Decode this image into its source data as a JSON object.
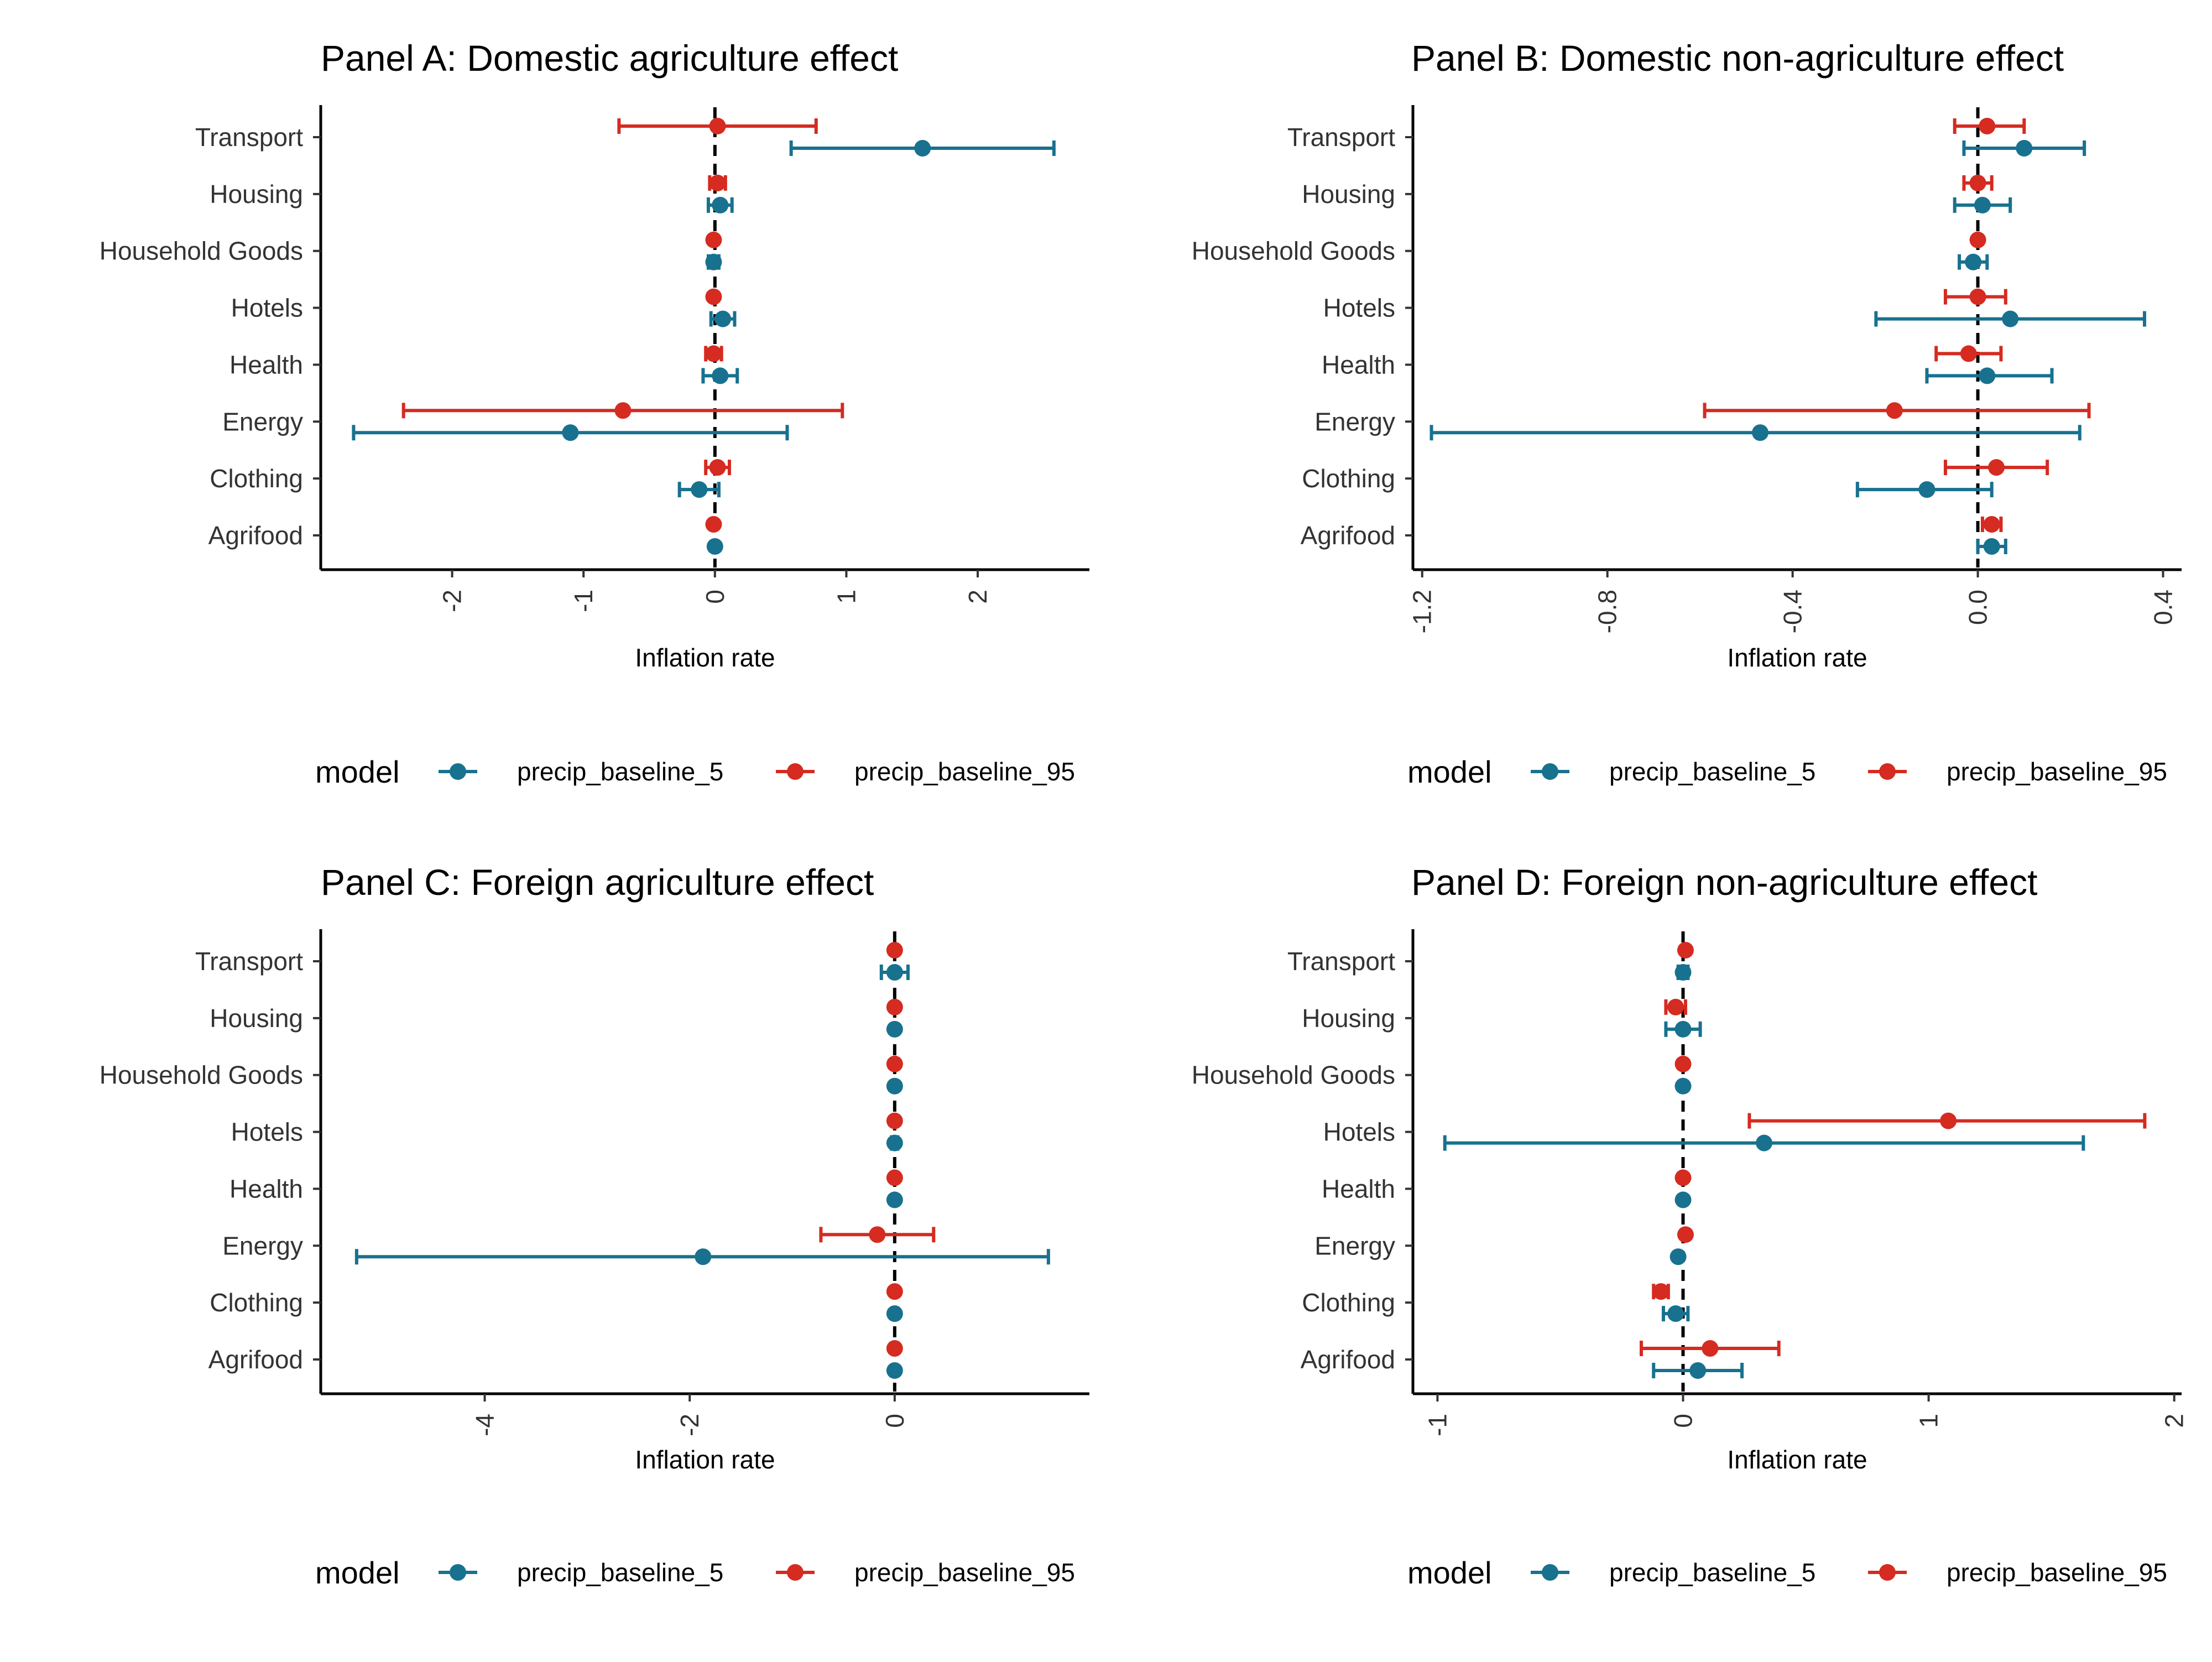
{
  "colors": {
    "precip_baseline_5": "#18718f",
    "precip_baseline_95": "#d52b21",
    "axis": "#000000"
  },
  "chart_data": [
    {
      "type": "errorbar",
      "title": "Panel A: Domestic agriculture effect",
      "xlabel": "Inflation rate",
      "categories": [
        "Transport",
        "Housing",
        "Household Goods",
        "Hotels",
        "Health",
        "Energy",
        "Clothing",
        "Agrifood"
      ],
      "xlim": [
        -3.0,
        2.85
      ],
      "xticks": [
        -2,
        -1,
        0,
        1,
        2
      ],
      "xtick_labels": [
        "-2",
        "-1",
        "0",
        "1",
        "2"
      ],
      "series": [
        {
          "name": "precip_baseline_5",
          "estimate": [
            1.58,
            0.04,
            -0.01,
            0.06,
            0.04,
            -1.1,
            -0.12,
            0.0
          ],
          "lower": [
            0.58,
            -0.05,
            -0.05,
            -0.03,
            -0.09,
            -2.75,
            -0.27,
            0.0
          ],
          "upper": [
            2.58,
            0.13,
            0.03,
            0.15,
            0.17,
            0.55,
            0.03,
            0.0
          ]
        },
        {
          "name": "precip_baseline_95",
          "estimate": [
            0.02,
            0.02,
            -0.01,
            -0.01,
            -0.01,
            -0.7,
            0.02,
            -0.01
          ],
          "lower": [
            -0.73,
            -0.04,
            -0.01,
            -0.01,
            -0.07,
            -2.37,
            -0.07,
            -0.01
          ],
          "upper": [
            0.77,
            0.08,
            -0.01,
            -0.01,
            0.05,
            0.97,
            0.11,
            -0.01
          ]
        }
      ],
      "legend": {
        "title": "model",
        "position": "bottom",
        "entries": [
          "precip_baseline_5",
          "precip_baseline_95"
        ]
      }
    },
    {
      "type": "errorbar",
      "title": "Panel B: Domestic non-agriculture effect",
      "xlabel": "Inflation rate",
      "categories": [
        "Transport",
        "Housing",
        "Household Goods",
        "Hotels",
        "Health",
        "Energy",
        "Clothing",
        "Agrifood"
      ],
      "xlim": [
        -1.22,
        0.44
      ],
      "xticks": [
        -1.2,
        -0.8,
        -0.4,
        0.0,
        0.4
      ],
      "xtick_labels": [
        "-1.2",
        "-0.8",
        "-0.4",
        "0.0",
        "0.4"
      ],
      "series": [
        {
          "name": "precip_baseline_5",
          "estimate": [
            0.1,
            0.01,
            -0.01,
            0.07,
            0.02,
            -0.47,
            -0.11,
            0.03
          ],
          "lower": [
            -0.03,
            -0.05,
            -0.04,
            -0.22,
            -0.11,
            -1.18,
            -0.26,
            0.0
          ],
          "upper": [
            0.23,
            0.07,
            0.02,
            0.36,
            0.16,
            0.22,
            0.03,
            0.06
          ]
        },
        {
          "name": "precip_baseline_95",
          "estimate": [
            0.02,
            0.0,
            0.0,
            0.0,
            -0.02,
            -0.18,
            0.04,
            0.03
          ],
          "lower": [
            -0.05,
            -0.03,
            0.0,
            -0.07,
            -0.09,
            -0.59,
            -0.07,
            0.01
          ],
          "upper": [
            0.1,
            0.03,
            0.0,
            0.06,
            0.05,
            0.24,
            0.15,
            0.05
          ]
        }
      ],
      "legend": {
        "title": "model",
        "position": "bottom",
        "entries": [
          "precip_baseline_5",
          "precip_baseline_95"
        ]
      }
    },
    {
      "type": "errorbar",
      "title": "Panel C: Foreign agriculture effect",
      "xlabel": "Inflation rate",
      "categories": [
        "Transport",
        "Housing",
        "Household Goods",
        "Hotels",
        "Health",
        "Energy",
        "Clothing",
        "Agrifood"
      ],
      "xlim": [
        -5.6,
        1.9
      ],
      "xticks": [
        -4,
        -2,
        0
      ],
      "xtick_labels": [
        "-4",
        "-2",
        "0"
      ],
      "series": [
        {
          "name": "precip_baseline_5",
          "estimate": [
            0.0,
            0.0,
            0.0,
            0.0,
            0.0,
            -1.87,
            0.0,
            0.0
          ],
          "lower": [
            -0.13,
            0.0,
            0.0,
            -0.03,
            0.0,
            -5.25,
            0.0,
            0.0
          ],
          "upper": [
            0.13,
            0.0,
            0.0,
            0.03,
            0.0,
            1.5,
            0.0,
            0.0
          ]
        },
        {
          "name": "precip_baseline_95",
          "estimate": [
            0.0,
            0.0,
            0.0,
            0.0,
            0.0,
            -0.17,
            0.0,
            0.0
          ],
          "lower": [
            0.0,
            0.0,
            0.0,
            0.0,
            0.0,
            -0.72,
            0.0,
            0.0
          ],
          "upper": [
            0.0,
            0.0,
            0.0,
            0.0,
            0.0,
            0.38,
            0.0,
            0.0
          ]
        }
      ],
      "legend": {
        "title": "model",
        "position": "bottom",
        "entries": [
          "precip_baseline_5",
          "precip_baseline_95"
        ]
      }
    },
    {
      "type": "errorbar",
      "title": "Panel D: Foreign non-agriculture effect",
      "xlabel": "Inflation rate",
      "categories": [
        "Transport",
        "Housing",
        "Household Goods",
        "Hotels",
        "Health",
        "Energy",
        "Clothing",
        "Agrifood"
      ],
      "xlim": [
        -1.1,
        2.03
      ],
      "xticks": [
        -1,
        0,
        1,
        2
      ],
      "xtick_labels": [
        "-1",
        "0",
        "1",
        "2"
      ],
      "series": [
        {
          "name": "precip_baseline_5",
          "estimate": [
            0.0,
            0.0,
            0.0,
            0.33,
            0.0,
            -0.02,
            -0.03,
            0.06
          ],
          "lower": [
            -0.02,
            -0.07,
            0.0,
            -0.97,
            0.0,
            -0.02,
            -0.08,
            -0.12
          ],
          "upper": [
            0.02,
            0.07,
            0.0,
            1.63,
            0.0,
            -0.02,
            0.02,
            0.24
          ]
        },
        {
          "name": "precip_baseline_95",
          "estimate": [
            0.01,
            -0.03,
            0.0,
            1.08,
            0.0,
            0.01,
            -0.09,
            0.11
          ],
          "lower": [
            0.01,
            -0.07,
            0.0,
            0.27,
            0.0,
            0.01,
            -0.12,
            -0.17
          ],
          "upper": [
            0.01,
            0.01,
            0.0,
            1.88,
            0.0,
            0.01,
            -0.06,
            0.39
          ]
        }
      ],
      "legend": {
        "title": "model",
        "position": "bottom",
        "entries": [
          "precip_baseline_5",
          "precip_baseline_95"
        ]
      }
    }
  ]
}
